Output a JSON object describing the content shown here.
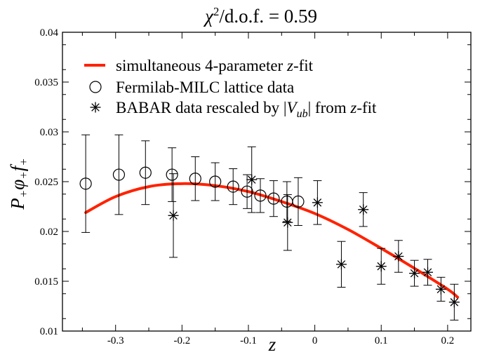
{
  "chart_data": {
    "type": "scatter",
    "title": "χ²/d.o.f. = 0.59",
    "xlabel": "z",
    "ylabel": "P₊φ₊f₊",
    "xlim": [
      -0.38,
      0.235
    ],
    "ylim": [
      0.01,
      0.04
    ],
    "x_ticks": [
      -0.3,
      -0.2,
      -0.1,
      0,
      0.1,
      0.2
    ],
    "x_tick_labels": [
      "-0.3",
      "-0.2",
      "-0.1",
      "0",
      "0.1",
      "0.2"
    ],
    "y_ticks": [
      0.01,
      0.015,
      0.02,
      0.025,
      0.03,
      0.035,
      0.04
    ],
    "y_tick_labels": [
      "0.01",
      "0.015",
      "0.02",
      "0.025",
      "0.03",
      "0.035",
      "0.04"
    ],
    "grid": false,
    "legend_position": "top-left",
    "legend": [
      {
        "label": "simultaneous 4-parameter z-fit",
        "marker": "line",
        "color": "#ff2200"
      },
      {
        "label": "Fermilab-MILC lattice data",
        "marker": "circle",
        "color": "#000000"
      },
      {
        "label": "BABAR data rescaled by |V_ub| from z-fit",
        "marker": "asterisk",
        "color": "#000000"
      }
    ],
    "series": [
      {
        "name": "simultaneous 4-parameter z-fit",
        "kind": "line",
        "color": "#ff2200",
        "x": [
          -0.345,
          -0.3,
          -0.25,
          -0.2,
          -0.15,
          -0.1,
          -0.05,
          0.0,
          0.05,
          0.1,
          0.15,
          0.2,
          0.215
        ],
        "y": [
          0.0219,
          0.0235,
          0.0245,
          0.0248,
          0.0246,
          0.024,
          0.023,
          0.0218,
          0.0202,
          0.0183,
          0.0163,
          0.0142,
          0.0134
        ]
      },
      {
        "name": "Fermilab-MILC lattice data",
        "kind": "circle",
        "x": [
          -0.345,
          -0.295,
          -0.255,
          -0.215,
          -0.18,
          -0.15,
          -0.123,
          -0.102,
          -0.082,
          -0.062,
          -0.042,
          -0.025
        ],
        "y": [
          0.0248,
          0.0257,
          0.0259,
          0.0257,
          0.0253,
          0.025,
          0.0245,
          0.024,
          0.0236,
          0.0233,
          0.023,
          0.023
        ],
        "err": [
          0.0049,
          0.004,
          0.0032,
          0.0027,
          0.0022,
          0.0019,
          0.0018,
          0.0017,
          0.0017,
          0.0018,
          0.002,
          0.0024
        ]
      },
      {
        "name": "BABAR data rescaled by |V_ub| from z-fit",
        "kind": "asterisk",
        "x": [
          -0.213,
          -0.095,
          -0.041,
          0.004,
          0.04,
          0.073,
          0.1,
          0.126,
          0.15,
          0.17,
          0.19,
          0.21
        ],
        "y": [
          0.0216,
          0.0252,
          0.0209,
          0.0229,
          0.0167,
          0.0222,
          0.0165,
          0.0175,
          0.0158,
          0.0159,
          0.0142,
          0.0129
        ],
        "err": [
          0.0042,
          0.0033,
          0.0028,
          0.0022,
          0.0023,
          0.0017,
          0.0018,
          0.0016,
          0.0013,
          0.0013,
          0.0012,
          0.0018
        ]
      }
    ]
  }
}
